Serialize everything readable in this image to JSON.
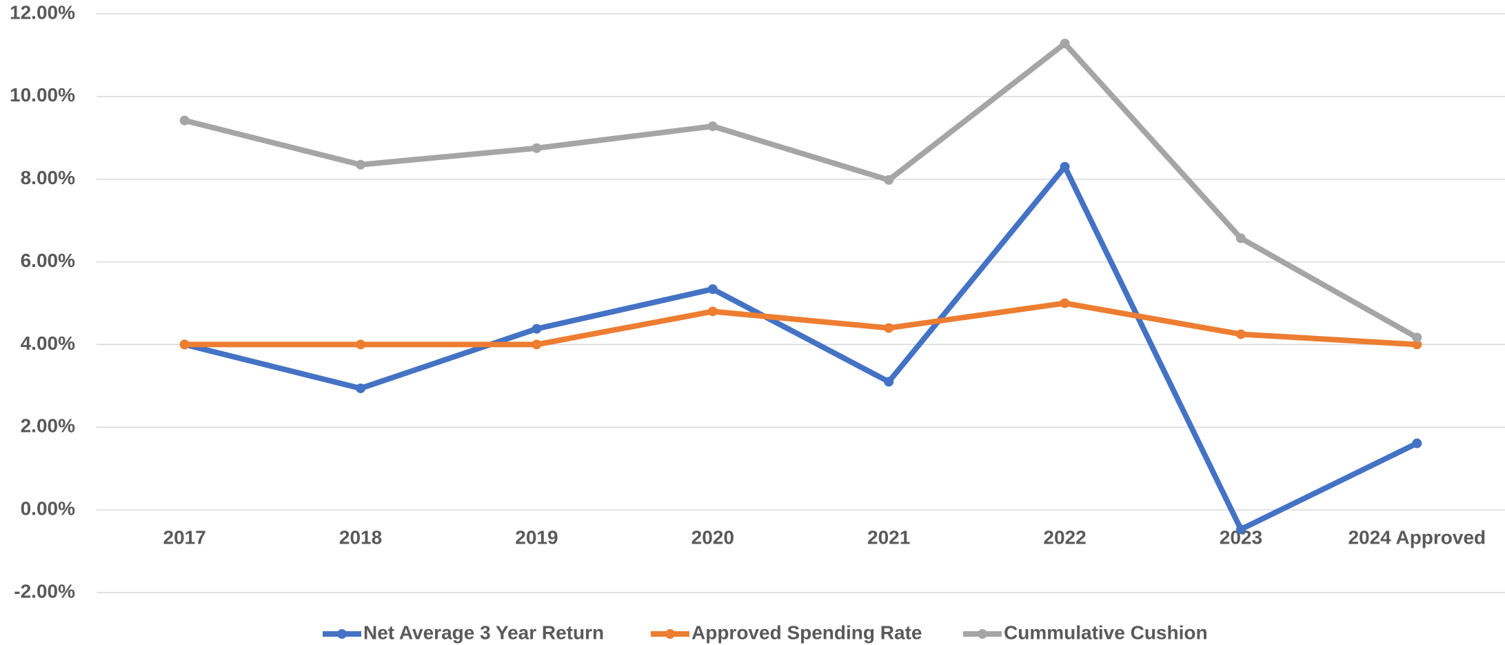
{
  "chart_data": {
    "type": "line",
    "categories": [
      "2017",
      "2018",
      "2019",
      "2020",
      "2021",
      "2022",
      "2023",
      "2024 Approved"
    ],
    "series": [
      {
        "name": "Net Average 3 Year Return",
        "color": "#4472c4",
        "values": [
          4.0,
          2.94,
          4.38,
          5.34,
          3.1,
          8.3,
          -0.47,
          1.61
        ]
      },
      {
        "name": "Approved Spending Rate",
        "color": "#ed7d31",
        "values": [
          4.0,
          4.0,
          4.0,
          4.8,
          4.4,
          5.0,
          4.25,
          4.0
        ]
      },
      {
        "name": "Cummulative Cushion",
        "color": "#a5a5a5",
        "values": [
          9.42,
          8.35,
          8.75,
          9.28,
          7.98,
          11.28,
          6.57,
          4.17
        ]
      }
    ],
    "ylim": [
      -2,
      12
    ],
    "yticks": [
      {
        "value": -2,
        "label": "-2.00%"
      },
      {
        "value": 0,
        "label": "0.00%"
      },
      {
        "value": 2,
        "label": "2.00%"
      },
      {
        "value": 4,
        "label": "4.00%"
      },
      {
        "value": 6,
        "label": "6.00%"
      },
      {
        "value": 8,
        "label": "8.00%"
      },
      {
        "value": 10,
        "label": "10.00%"
      },
      {
        "value": 12,
        "label": "12.00%"
      }
    ],
    "grid": true,
    "legend": "bottom"
  }
}
